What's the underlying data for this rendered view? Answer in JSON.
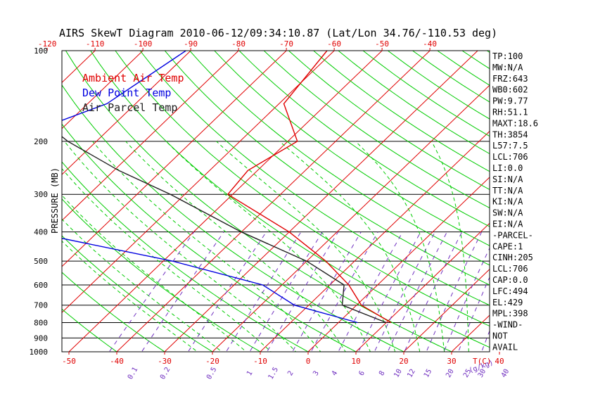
{
  "chart_data": {
    "type": "line",
    "title": "AIRS SkewT Diagram 2010-06-12/09:34:10.87 (Lat/Lon 34.76/-110.53 deg)",
    "ylabel": "PRESSURE (MB)",
    "top_axis_ticks": [
      "-120",
      "-110",
      "-100",
      "-90",
      "-80",
      "-70",
      "-60",
      "-50",
      "-40"
    ],
    "bottom_temp_ticks": [
      "-50",
      "-40",
      "-30",
      "-20",
      "-10",
      "0",
      "10",
      "20",
      "30",
      "40"
    ],
    "bottom_temp_unit": "T(C)",
    "mixing_ratio_ticks": [
      "0.1",
      "0.2",
      "0.5",
      "1",
      "1.5",
      "2",
      "3",
      "4",
      "6",
      "8",
      "10",
      "12",
      "15",
      "20",
      "25",
      "30",
      "40"
    ],
    "mixing_ratio_unit": "(g/kg)",
    "pressure_ticks": [
      "100",
      "200",
      "300",
      "400",
      "500",
      "600",
      "700",
      "800",
      "900",
      "1000"
    ],
    "pressure_lines": [
      200,
      300,
      400,
      500,
      600,
      700,
      800,
      900
    ],
    "legend": [
      {
        "name": "Ambient Air Temp",
        "color": "#e00000"
      },
      {
        "name": "Dew Point Temp",
        "color": "#0000e0"
      },
      {
        "name": "Air Parcel Temp",
        "color": "#202020"
      }
    ],
    "grid_colors": {
      "isotherm": "#e00000",
      "dry_adiabat": "#00cc00",
      "moist_adiabat": "#00cc00",
      "mixing_ratio": "#7030c0",
      "isobar": "#000000"
    },
    "series": [
      {
        "name": "Ambient Air Temp",
        "color": "#e00000",
        "points": [
          [
            100,
            -61.5
          ],
          [
            150,
            -59
          ],
          [
            200,
            -48
          ],
          [
            250,
            -52
          ],
          [
            300,
            -51
          ],
          [
            400,
            -30
          ],
          [
            500,
            -16
          ],
          [
            600,
            -6
          ],
          [
            700,
            1
          ],
          [
            800,
            11
          ]
        ]
      },
      {
        "name": "Dew Point Temp",
        "color": "#0000e0",
        "points": [
          [
            100,
            -91
          ],
          [
            150,
            -96
          ],
          [
            200,
            -109
          ],
          [
            250,
            -114
          ],
          [
            300,
            -104
          ],
          [
            400,
            -84
          ],
          [
            500,
            -48
          ],
          [
            600,
            -24
          ],
          [
            700,
            -13
          ],
          [
            800,
            4
          ]
        ]
      },
      {
        "name": "Air Parcel Temp",
        "color": "#202020",
        "points": [
          [
            100,
            -126
          ],
          [
            150,
            -114
          ],
          [
            200,
            -96
          ],
          [
            250,
            -79
          ],
          [
            300,
            -63
          ],
          [
            400,
            -40
          ],
          [
            500,
            -20
          ],
          [
            600,
            -7
          ],
          [
            700,
            -3
          ],
          [
            800,
            10
          ]
        ]
      }
    ],
    "stats": [
      "TP:100",
      "MW:N/A",
      "FRZ:643",
      "WB0:602",
      "PW:9.77",
      "RH:51.1",
      "MAXT:18.6",
      "TH:3854",
      "L57:7.5",
      "LCL:706",
      "LI:0.0",
      "SI:N/A",
      "TT:N/A",
      "KI:N/A",
      "SW:N/A",
      "EI:N/A",
      "-PARCEL-",
      "CAPE:1",
      "CINH:205",
      "LCL:706",
      "CAP:0.0",
      "LFC:494",
      "EL:429",
      "MPL:398",
      "-WIND-",
      "NOT",
      "AVAIL"
    ]
  }
}
